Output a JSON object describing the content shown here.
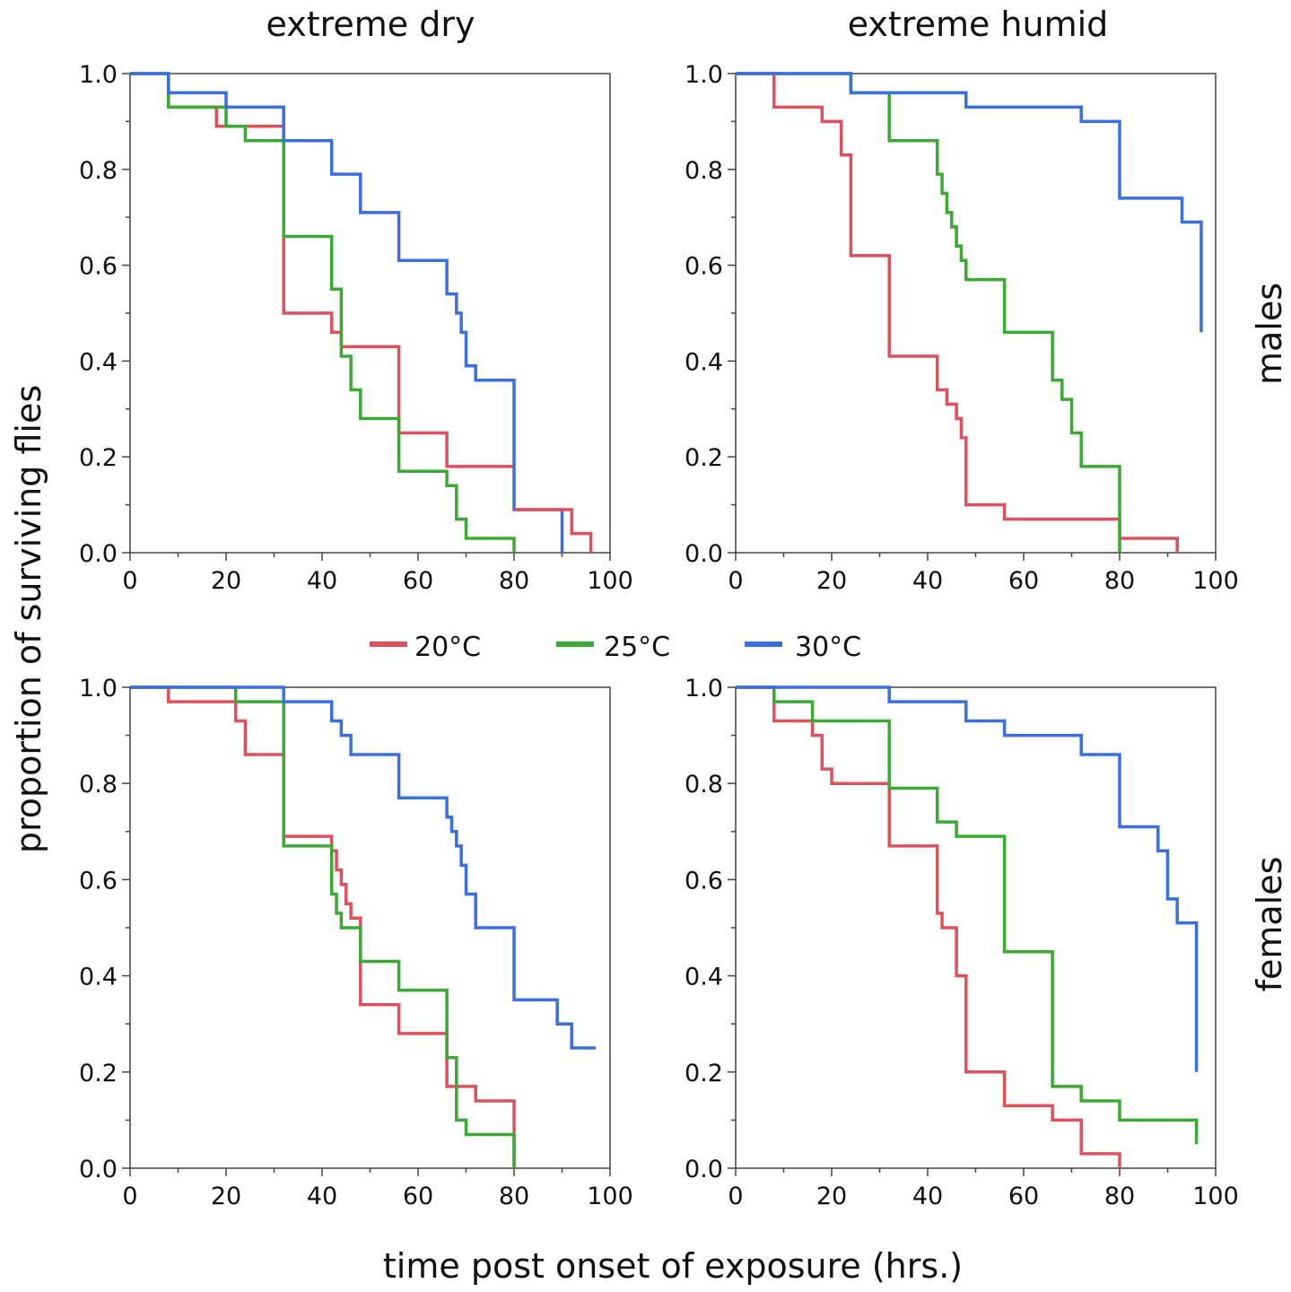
{
  "figure": {
    "col_titles": [
      "extreme dry",
      "extreme humid"
    ],
    "row_labels": [
      "males",
      "females"
    ],
    "ylabel": "proportion of surviving flies",
    "xlabel": "time post onset of exposure (hrs.)"
  },
  "legend": [
    {
      "label": "20°C",
      "color": "#e0505a"
    },
    {
      "label": "25°C",
      "color": "#3aaa35"
    },
    {
      "label": "30°C",
      "color": "#3a6fe0"
    }
  ],
  "chart_data": [
    {
      "type": "line",
      "step": true,
      "title": "extreme dry",
      "row": "males",
      "xlim": [
        0,
        100
      ],
      "ylim": [
        0,
        1
      ],
      "xticks": [
        "0",
        "20",
        "40",
        "60",
        "80",
        "100"
      ],
      "yticks": [
        "0.0",
        "0.2",
        "0.4",
        "0.6",
        "0.8",
        "1.0"
      ],
      "series": [
        {
          "name": "20°C",
          "x": [
            0,
            8,
            18,
            20,
            32,
            32,
            42,
            44,
            56,
            66,
            80
          ],
          "y": [
            1,
            0.93,
            0.89,
            0.89,
            0.65,
            0.5,
            0.46,
            0.43,
            0.25,
            0.18,
            0.18
          ]
        },
        {
          "name": "25°C",
          "x": [
            0,
            8,
            20,
            24,
            32,
            42,
            44,
            46,
            48,
            56,
            66,
            68,
            70,
            80
          ],
          "y": [
            1,
            0.93,
            0.89,
            0.86,
            0.66,
            0.55,
            0.41,
            0.34,
            0.28,
            0.17,
            0.14,
            0.07,
            0.03,
            0.0
          ]
        },
        {
          "name": "30°C",
          "x": [
            0,
            8,
            20,
            32,
            42,
            48,
            56,
            66,
            68,
            69,
            70,
            72,
            80,
            90
          ],
          "y": [
            1,
            0.96,
            0.93,
            0.86,
            0.79,
            0.71,
            0.61,
            0.54,
            0.5,
            0.46,
            0.39,
            0.36,
            0.09,
            0.0
          ]
        },
        {
          "name": "20°C",
          "x": [
            80,
            90,
            92,
            96
          ],
          "y": [
            0.09,
            0.09,
            0.04,
            0.0
          ]
        }
      ]
    },
    {
      "type": "line",
      "step": true,
      "title": "extreme humid",
      "row": "males",
      "xlim": [
        0,
        100
      ],
      "ylim": [
        0,
        1
      ],
      "xticks": [
        "0",
        "20",
        "40",
        "60",
        "80",
        "100"
      ],
      "yticks": [
        "0.0",
        "0.2",
        "0.4",
        "0.6",
        "0.8",
        "1.0"
      ],
      "series": [
        {
          "name": "20°C",
          "x": [
            0,
            8,
            18,
            22,
            23,
            24,
            32,
            42,
            43,
            44,
            46,
            47,
            48,
            52,
            56,
            80,
            92
          ],
          "y": [
            1,
            0.93,
            0.9,
            0.83,
            0.83,
            0.62,
            0.41,
            0.34,
            0.34,
            0.31,
            0.28,
            0.24,
            0.1,
            0.1,
            0.07,
            0.03,
            0.0
          ]
        },
        {
          "name": "25°C",
          "x": [
            0,
            24,
            32,
            42,
            43,
            44,
            45,
            46,
            47,
            48,
            56,
            66,
            68,
            70,
            72,
            80
          ],
          "y": [
            1,
            0.96,
            0.86,
            0.79,
            0.75,
            0.71,
            0.68,
            0.64,
            0.61,
            0.57,
            0.46,
            0.36,
            0.32,
            0.25,
            0.18,
            0.0
          ]
        },
        {
          "name": "30°C",
          "x": [
            0,
            24,
            48,
            72,
            80,
            93,
            97
          ],
          "y": [
            1,
            0.96,
            0.93,
            0.9,
            0.74,
            0.69,
            0.46
          ]
        }
      ]
    },
    {
      "type": "line",
      "step": true,
      "title": "extreme dry",
      "row": "females",
      "xlim": [
        0,
        100
      ],
      "ylim": [
        0,
        1
      ],
      "xticks": [
        "0",
        "20",
        "40",
        "60",
        "80",
        "100"
      ],
      "yticks": [
        "0.0",
        "0.2",
        "0.4",
        "0.6",
        "0.8",
        "1.0"
      ],
      "series": [
        {
          "name": "20°C",
          "x": [
            0,
            8,
            22,
            24,
            32,
            42,
            43,
            44,
            45,
            46,
            48,
            56,
            66,
            68,
            72,
            80
          ],
          "y": [
            1,
            0.97,
            0.93,
            0.86,
            0.69,
            0.66,
            0.62,
            0.59,
            0.55,
            0.52,
            0.34,
            0.28,
            0.17,
            0.17,
            0.14,
            0.0
          ]
        },
        {
          "name": "25°C",
          "x": [
            0,
            22,
            32,
            42,
            43,
            44,
            46,
            48,
            56,
            66,
            68,
            70,
            80
          ],
          "y": [
            1,
            0.97,
            0.67,
            0.57,
            0.53,
            0.5,
            0.5,
            0.43,
            0.37,
            0.23,
            0.1,
            0.07,
            0.0
          ]
        },
        {
          "name": "30°C",
          "x": [
            0,
            32,
            42,
            44,
            46,
            48,
            56,
            66,
            67,
            68,
            69,
            70,
            72,
            80,
            89,
            92,
            97
          ],
          "y": [
            1,
            0.97,
            0.93,
            0.9,
            0.86,
            0.86,
            0.77,
            0.73,
            0.7,
            0.67,
            0.63,
            0.57,
            0.5,
            0.35,
            0.3,
            0.25,
            0.25
          ]
        }
      ]
    },
    {
      "type": "line",
      "step": true,
      "title": "extreme humid",
      "row": "females",
      "xlim": [
        0,
        100
      ],
      "ylim": [
        0,
        1
      ],
      "xticks": [
        "0",
        "20",
        "40",
        "60",
        "80",
        "100"
      ],
      "yticks": [
        "0.0",
        "0.2",
        "0.4",
        "0.6",
        "0.8",
        "1.0"
      ],
      "series": [
        {
          "name": "20°C",
          "x": [
            0,
            8,
            16,
            18,
            20,
            32,
            42,
            43,
            44,
            46,
            48,
            56,
            66,
            72,
            80
          ],
          "y": [
            1,
            0.93,
            0.9,
            0.83,
            0.8,
            0.67,
            0.53,
            0.5,
            0.5,
            0.4,
            0.2,
            0.13,
            0.1,
            0.03,
            0.0
          ]
        },
        {
          "name": "25°C",
          "x": [
            0,
            8,
            16,
            32,
            42,
            46,
            56,
            66,
            72,
            80,
            96
          ],
          "y": [
            1,
            0.97,
            0.93,
            0.79,
            0.72,
            0.69,
            0.45,
            0.17,
            0.14,
            0.1,
            0.05
          ]
        },
        {
          "name": "30°C",
          "x": [
            0,
            32,
            48,
            56,
            72,
            80,
            88,
            90,
            92,
            96
          ],
          "y": [
            1,
            0.97,
            0.93,
            0.9,
            0.86,
            0.71,
            0.66,
            0.56,
            0.51,
            0.2
          ]
        }
      ]
    }
  ]
}
